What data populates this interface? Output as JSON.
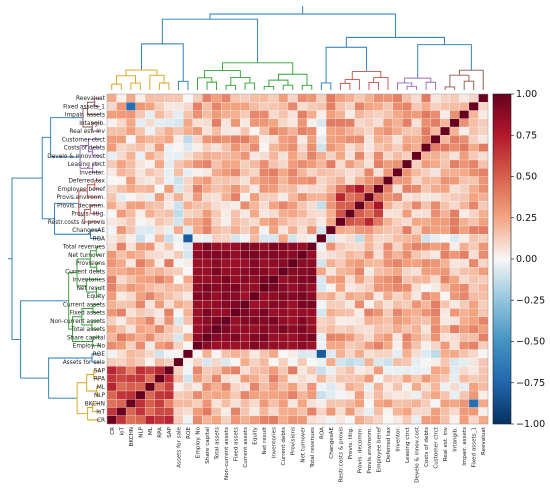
{
  "chart_data": {
    "type": "heatmap",
    "title": "",
    "xlabel": "",
    "ylabel": "",
    "rows": [
      "Reevaluat",
      "Fixed assets_1",
      "Impair. assets",
      "Intangib.",
      "Real est. inv",
      "Customer ctrct",
      "Costs of debts",
      "Develo & innov.cost",
      "Leasing ctrct",
      "Inventor.",
      "Deferred tax",
      "Employee benef",
      "Provis.environm.",
      "Provis. decomm.",
      "Provis. litig.",
      "Restr.costs & provis",
      "ChangesAE",
      "ROA",
      "Total revenues",
      "Net turnover",
      "Provisions",
      "Current debts",
      "Inventories",
      "Net result",
      "Equity",
      "Current assets",
      "Fixed assets",
      "Non-current assets",
      "Total assets",
      "Share capital",
      "Employ. No",
      "ROE",
      "Assets for sale",
      "SAP",
      "RPA",
      "ML",
      "NLP",
      "BKCHN",
      "IoT",
      "CR"
    ],
    "columns": [
      "CR",
      "IoT",
      "BKCHN",
      "NLP",
      "ML",
      "RPA",
      "SAP",
      "Assets for sale",
      "ROE",
      "Employ. No",
      "Share capital",
      "Total assets",
      "Non-current assets",
      "Fixed assets",
      "Current assets",
      "Equity",
      "Net result",
      "Inventories",
      "Current debts",
      "Provisions",
      "Net turnover",
      "Total revenues",
      "ROA",
      "ChangesAE",
      "Restr.costs & provis",
      "Provis. litig.",
      "Provis. decomm.",
      "Provis.environm.",
      "Employee benef",
      "Deferred tax",
      "Inventor.",
      "Leasing ctrct",
      "Develo & innov.cost",
      "Costs of debts",
      "Customer ctrct",
      "Real est. inv",
      "Intangib.",
      "Impair. assets",
      "Fixed assets_1",
      "Reevaluat"
    ],
    "colorbar": {
      "min": -1.0,
      "max": 1.0,
      "ticks": [
        "1.00",
        "0.75",
        "0.50",
        "0.25",
        "0.00",
        "−0.25",
        "−0.50",
        "−0.75",
        "−1.00"
      ]
    },
    "cluster_colors": [
      "#d4a017",
      "#2ca02c",
      "#c0504d",
      "#9467bd",
      "#8c564b",
      "#1f77b4"
    ],
    "colormap": "RdBu_r",
    "blocks": {
      "financial_size": {
        "row_start": 18,
        "row_end": 30,
        "value": 0.88
      },
      "technology": {
        "row_start": 33,
        "row_end": 39,
        "value": 0.55
      },
      "provisions": {
        "row_start": 11,
        "row_end": 15,
        "value": 0.6
      }
    },
    "notable": [
      {
        "row": "ROA",
        "col": "ROE",
        "value": -0.8
      },
      {
        "row": "ROE",
        "col": "ROA",
        "value": -0.8
      },
      {
        "row": "Fixed assets_1",
        "col": "BKCHN",
        "value": -0.7
      },
      {
        "row": "BKCHN",
        "col": "Fixed assets_1",
        "value": -0.7
      }
    ]
  }
}
